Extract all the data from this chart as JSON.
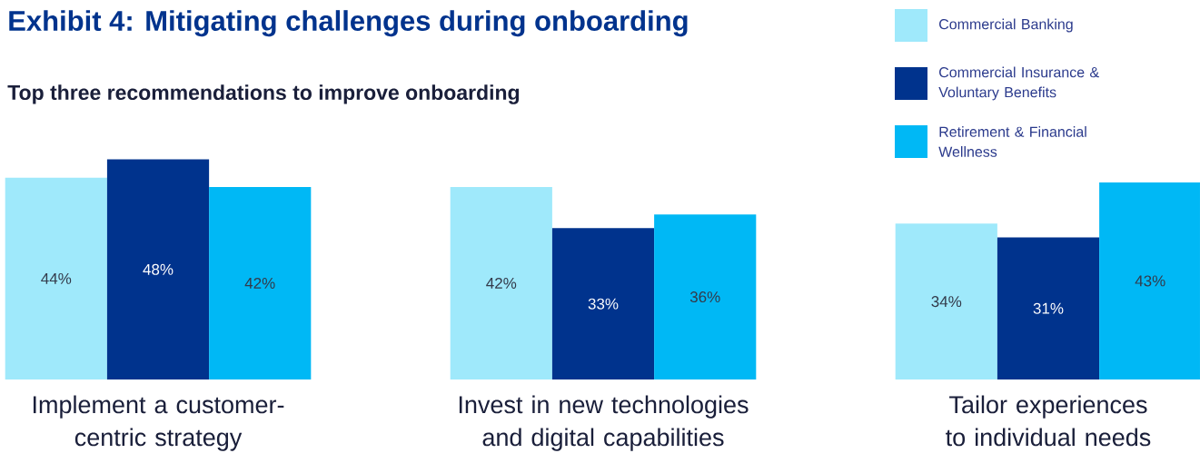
{
  "chart_data": {
    "type": "bar",
    "title": "Exhibit 4: Mitigating challenges during onboarding",
    "subtitle": "Top three recommendations to improve onboarding",
    "categories": [
      "Implement a customer-centric strategy",
      "Invest in new technologies and digital capabilities",
      "Tailor experiences to individual needs"
    ],
    "series": [
      {
        "name": "Commercial Banking",
        "color": "#9fe9fb",
        "values": [
          44,
          42,
          34
        ],
        "value_labels": [
          "44%",
          "42%",
          "34%"
        ]
      },
      {
        "name": "Commercial Insurance & Voluntary Benefits",
        "color": "#00338d",
        "values": [
          48,
          33,
          31
        ],
        "value_labels": [
          "48%",
          "33%",
          "31%"
        ]
      },
      {
        "name": "Retirement & Financial Wellness",
        "color": "#00b8f5",
        "values": [
          42,
          36,
          43
        ],
        "value_labels": [
          "42%",
          "36%",
          "43%"
        ]
      }
    ],
    "legend": "top right"
  }
}
